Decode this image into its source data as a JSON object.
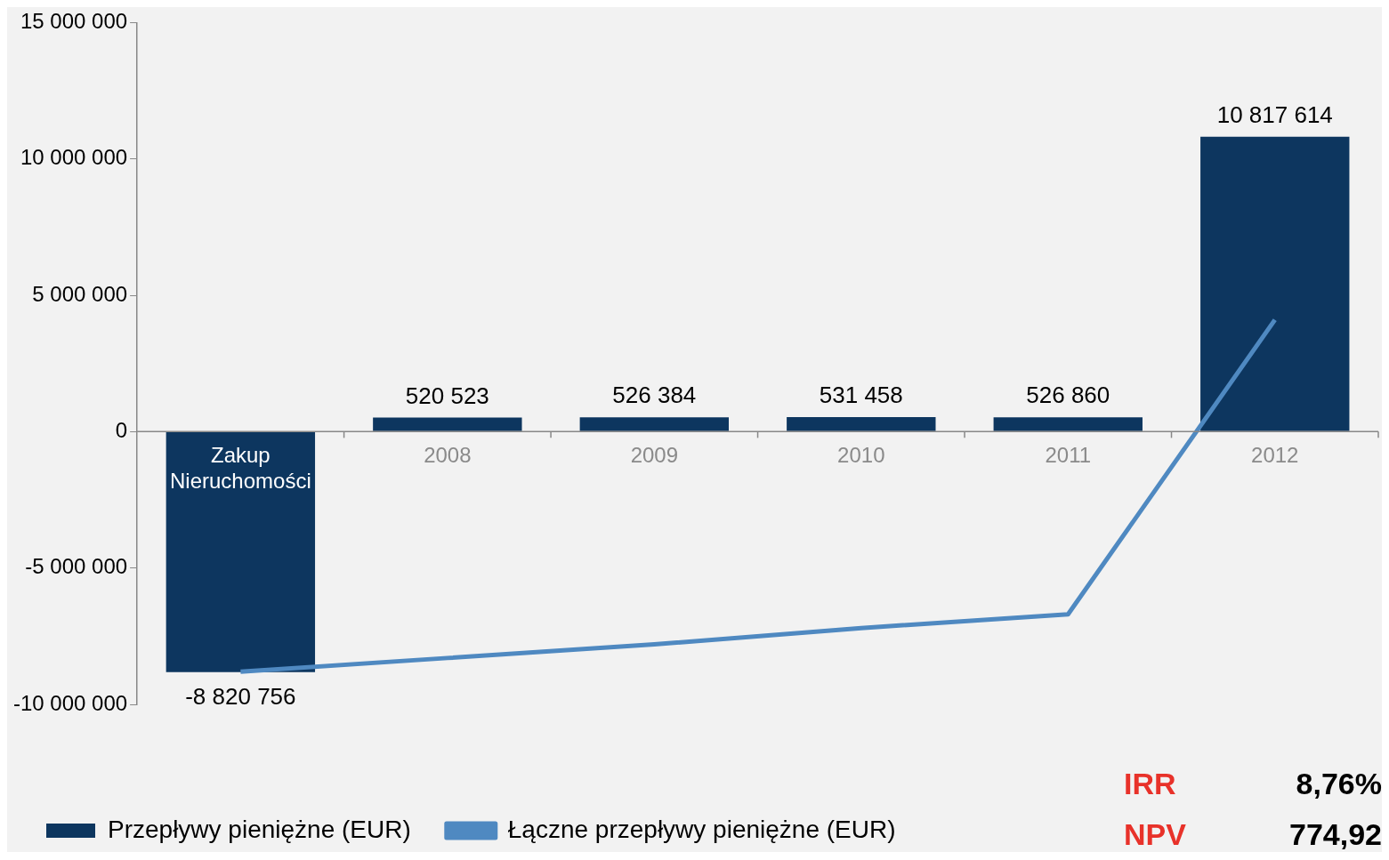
{
  "chart_data": {
    "type": "bar",
    "categories": [
      "Zakup Nieruchomości",
      "2008",
      "2009",
      "2010",
      "2011",
      "2012"
    ],
    "series": [
      {
        "name": "Przepływy pieniężne (EUR)",
        "color": "#0d365f",
        "values": [
          -8820756,
          520523,
          526384,
          531458,
          526860,
          10817614
        ],
        "value_labels": [
          "-8 820 756",
          "520 523",
          "526 384",
          "531 458",
          "526 860",
          "10 817 614"
        ]
      },
      {
        "name": "Łączne przepływy pieniężne (EUR)",
        "type": "line",
        "color": "#4f89c1",
        "values": [
          -8800000,
          -8300000,
          -7800000,
          -7200000,
          -6700000,
          4100000
        ]
      }
    ],
    "ylim": [
      -10000000,
      15000000
    ],
    "yticks": [
      {
        "value": -10000000,
        "label": "-10 000 000"
      },
      {
        "value": -5000000,
        "label": "-5 000 000"
      },
      0,
      {
        "value": 5000000,
        "label": "5 000 000"
      },
      {
        "value": 10000000,
        "label": "10 000 000"
      },
      {
        "value": 15000000,
        "label": "15 000 000"
      }
    ],
    "grid": false,
    "legend": "bottom",
    "marker": "none",
    "line_style": "solid",
    "annotations": [
      "IRR",
      "8,76%",
      "NPV",
      "774,92"
    ]
  }
}
